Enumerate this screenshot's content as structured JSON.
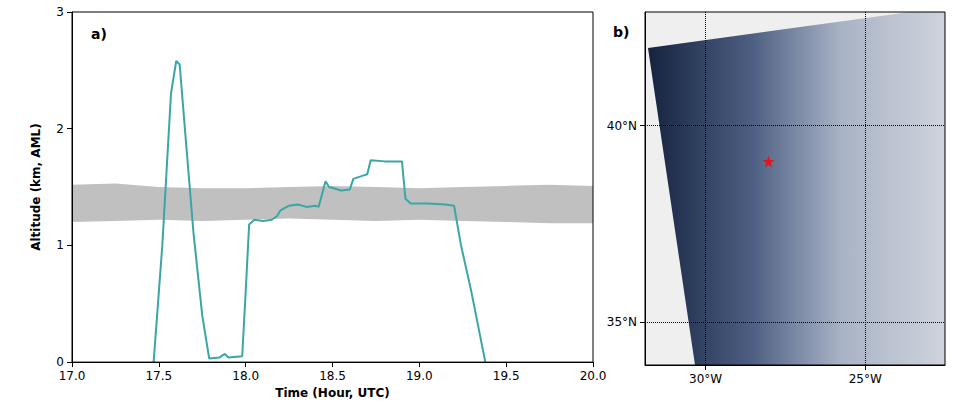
{
  "chart_data": [
    {
      "type": "line",
      "title": "a)",
      "x_label": "Time (Hour, UTC)",
      "y_label": "Altitude (km, AML)",
      "xlim": [
        17,
        20
      ],
      "xticks": [
        {
          "value": 17,
          "label": "17.0"
        },
        {
          "value": 17.5,
          "label": "17.5"
        },
        {
          "value": 18,
          "label": "18.0"
        },
        {
          "value": 18.5,
          "label": "18.5"
        },
        {
          "value": 19,
          "label": "19.0"
        },
        {
          "value": 19.5,
          "label": "19.5"
        },
        {
          "value": 20,
          "label": "20.0"
        }
      ],
      "ylim": [
        0,
        3
      ],
      "yticks": [
        0,
        1,
        2,
        3
      ],
      "grid": false,
      "band": {
        "color": "#c0c0c0",
        "x": [
          17.0,
          17.25,
          17.5,
          17.75,
          18.0,
          18.25,
          18.5,
          18.75,
          19.0,
          19.25,
          19.5,
          19.75,
          20.0
        ],
        "lower": [
          1.2,
          1.21,
          1.22,
          1.21,
          1.22,
          1.23,
          1.22,
          1.21,
          1.22,
          1.21,
          1.2,
          1.19,
          1.19
        ],
        "upper": [
          1.52,
          1.53,
          1.5,
          1.49,
          1.49,
          1.5,
          1.51,
          1.5,
          1.49,
          1.5,
          1.51,
          1.52,
          1.51
        ]
      },
      "color": "#3aa6a6",
      "x": [
        17.47,
        17.52,
        17.57,
        17.6,
        17.62,
        17.65,
        17.7,
        17.75,
        17.79,
        17.85,
        17.88,
        17.9,
        17.98,
        18.0,
        18.02,
        18.05,
        18.1,
        18.15,
        18.18,
        18.2,
        18.25,
        18.3,
        18.35,
        18.4,
        18.42,
        18.46,
        18.48,
        18.55,
        18.6,
        18.62,
        18.68,
        18.7,
        18.72,
        18.8,
        18.9,
        18.92,
        18.95,
        19.05,
        19.15,
        19.2,
        19.24,
        19.3,
        19.38
      ],
      "values": [
        0.0,
        1.0,
        2.3,
        2.58,
        2.55,
        2.0,
        1.1,
        0.4,
        0.03,
        0.04,
        0.07,
        0.04,
        0.05,
        0.6,
        1.18,
        1.22,
        1.21,
        1.22,
        1.25,
        1.3,
        1.34,
        1.35,
        1.33,
        1.34,
        1.33,
        1.55,
        1.5,
        1.47,
        1.48,
        1.57,
        1.6,
        1.61,
        1.73,
        1.72,
        1.72,
        1.4,
        1.36,
        1.36,
        1.35,
        1.34,
        1.0,
        0.6,
        0.0
      ]
    },
    {
      "type": "map",
      "title": "b)",
      "xlim": [
        -31.9,
        -22.5
      ],
      "xticks": [
        {
          "value": -30,
          "label": "30°W"
        },
        {
          "value": -25,
          "label": "25°W"
        }
      ],
      "ylim": [
        33.9,
        42.9
      ],
      "yticks": [
        {
          "value": 35,
          "label": "35°N"
        },
        {
          "value": 40,
          "label": "40°N"
        }
      ],
      "grid": true,
      "points": {
        "x": [
          -28.03
        ],
        "y": [
          39.09
        ],
        "color": "#ff0000",
        "marker": "star"
      }
    }
  ]
}
